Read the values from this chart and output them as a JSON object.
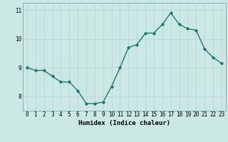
{
  "x": [
    0,
    1,
    2,
    3,
    4,
    5,
    6,
    7,
    8,
    9,
    10,
    11,
    12,
    13,
    14,
    15,
    16,
    17,
    18,
    19,
    20,
    21,
    22,
    23
  ],
  "y": [
    9.0,
    8.9,
    8.9,
    8.7,
    8.5,
    8.5,
    8.2,
    7.75,
    7.75,
    7.8,
    8.35,
    9.0,
    9.7,
    9.8,
    10.2,
    10.2,
    10.5,
    10.9,
    10.5,
    10.35,
    10.3,
    9.65,
    9.35,
    9.15
  ],
  "line_color": "#1a7a6e",
  "marker": "D",
  "marker_size": 1.8,
  "bg_color": "#cce8e5",
  "grid_color": "#b2d4d1",
  "xlabel": "Humidex (Indice chaleur)",
  "xlabel_fontsize": 6.5,
  "tick_fontsize": 5.5,
  "ylim": [
    7.5,
    11.25
  ],
  "xlim": [
    -0.5,
    23.5
  ],
  "yticks": [
    8,
    9,
    10,
    11
  ],
  "ytick_labels": [
    "8",
    "9",
    "10",
    "11"
  ],
  "xtick_labels": [
    "0",
    "1",
    "2",
    "3",
    "4",
    "5",
    "6",
    "7",
    "8",
    "9",
    "10",
    "11",
    "12",
    "13",
    "14",
    "15",
    "16",
    "17",
    "18",
    "19",
    "20",
    "21",
    "22",
    "23"
  ],
  "linewidth": 1.0
}
